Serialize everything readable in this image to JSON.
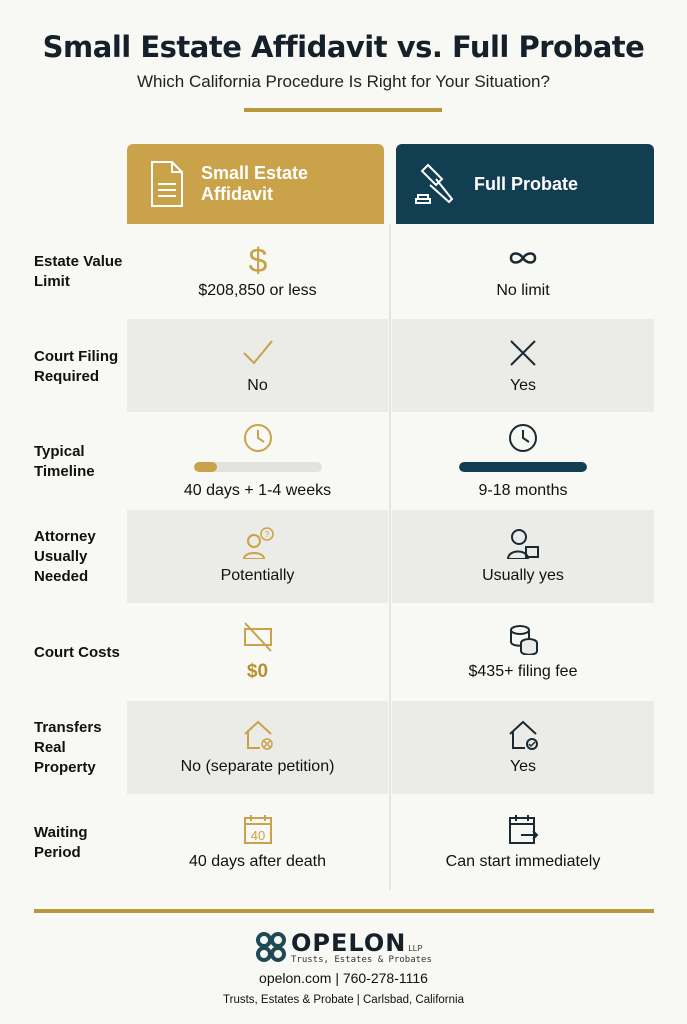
{
  "title": "Small Estate Affidavit vs. Full Probate",
  "subtitle": "Which California Procedure Is Right for Your Situation?",
  "columns": {
    "left": {
      "label_1": "Small Estate",
      "label_2": "Affidavit",
      "icon": "document-icon",
      "color": "#c9a24a"
    },
    "right": {
      "label": "Full Probate",
      "icon": "gavel-icon",
      "color": "#123e52"
    }
  },
  "rows": [
    {
      "label": "Estate Value Limit",
      "left": "$208,850 or less",
      "right": "No limit",
      "left_icon": "dollar-icon",
      "right_icon": "infinity-icon"
    },
    {
      "label": "Court Filing Required",
      "left": "No",
      "right": "Yes",
      "left_icon": "check-icon",
      "right_icon": "x-icon"
    },
    {
      "label": "Typical Timeline",
      "left": "40 days + 1-4 weeks",
      "right": "9-18 months",
      "left_icon": "clock-icon",
      "right_icon": "clock-icon",
      "left_progress": 0.18,
      "right_progress": 1.0
    },
    {
      "label": "Attorney Usually Needed",
      "left": "Potentially",
      "right": "Usually yes",
      "left_icon": "person-question-icon",
      "right_icon": "person-briefcase-icon"
    },
    {
      "label": "Court Costs",
      "left": "$0",
      "right": "$435+ filing fee",
      "left_icon": "no-money-icon",
      "right_icon": "coins-icon"
    },
    {
      "label": "Transfers Real Property",
      "left": "No (separate petition)",
      "right": "Yes",
      "left_icon": "house-x-icon",
      "right_icon": "house-check-icon"
    },
    {
      "label": "Waiting Period",
      "left": "40 days after death",
      "right": "Can start immediately",
      "left_icon": "calendar-40-icon",
      "right_icon": "calendar-arrow-icon",
      "calendar_number": "40"
    }
  ],
  "footer": {
    "logo_name": "OPELON",
    "logo_suffix": "LLP",
    "logo_tagline": "Trusts, Estates & Probates",
    "contact": "opelon.com | 760-278-1116",
    "location": "Trusts, Estates & Probate | Carlsbad, California"
  }
}
